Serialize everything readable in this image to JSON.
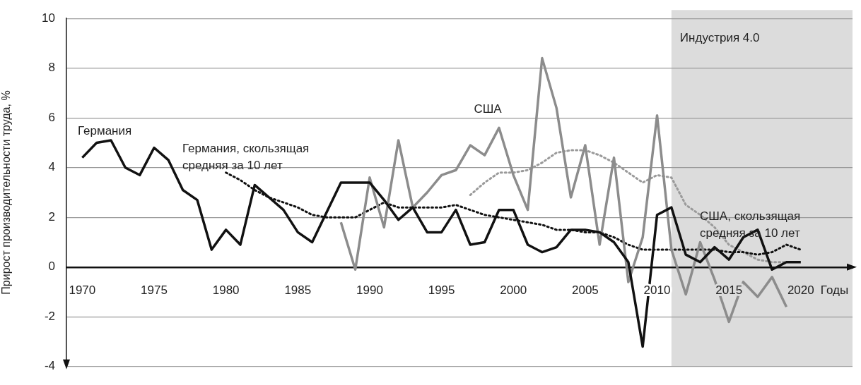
{
  "chart_data": {
    "type": "line",
    "ylabel": "Прирост производительности труда, %",
    "xlabel": "Годы",
    "xlim": [
      1968.9,
      2023.6
    ],
    "xticks": [
      1970,
      1975,
      1980,
      1985,
      1990,
      1995,
      2000,
      2005,
      2010,
      2015,
      2020
    ],
    "ylim": [
      -4,
      10
    ],
    "yticks": [
      -4,
      -2,
      0,
      2,
      4,
      6,
      8,
      10
    ],
    "grid": "y",
    "legend": false,
    "marker": "none",
    "bands": [
      {
        "axis": "x",
        "from": 2011,
        "to": 2023.6,
        "label": "Индустрия 4.0",
        "color": "#dcdcdc"
      }
    ],
    "series": [
      {
        "name": "Германия",
        "color": "#111111",
        "line_style": "solid",
        "x": [
          1970,
          1971,
          1972,
          1973,
          1974,
          1975,
          1976,
          1977,
          1978,
          1979,
          1980,
          1981,
          1982,
          1983,
          1984,
          1985,
          1986,
          1987,
          1988,
          1989,
          1990,
          1991,
          1992,
          1993,
          1994,
          1995,
          1996,
          1997,
          1998,
          1999,
          2000,
          2001,
          2002,
          2003,
          2004,
          2005,
          2006,
          2007,
          2008,
          2009,
          2010,
          2011,
          2012,
          2013,
          2014,
          2015,
          2016,
          2017,
          2018,
          2019,
          2020
        ],
        "values": [
          4.4,
          5.0,
          5.1,
          4.0,
          3.7,
          4.8,
          4.3,
          3.1,
          2.7,
          0.7,
          1.5,
          0.9,
          3.3,
          2.8,
          2.3,
          1.4,
          1.0,
          2.2,
          3.4,
          3.4,
          3.4,
          2.7,
          1.9,
          2.4,
          1.4,
          1.4,
          2.3,
          0.9,
          1.0,
          2.3,
          2.3,
          0.9,
          0.6,
          0.8,
          1.5,
          1.5,
          1.4,
          1.0,
          0.2,
          -3.2,
          2.1,
          2.4,
          0.5,
          0.2,
          0.8,
          0.3,
          1.2,
          1.5,
          -0.1,
          0.2,
          0.2
        ]
      },
      {
        "name": "США",
        "color": "#8c8c8c",
        "line_style": "solid",
        "x": [
          1988,
          1989,
          1990,
          1991,
          1992,
          1993,
          1994,
          1995,
          1996,
          1997,
          1998,
          1999,
          2000,
          2001,
          2002,
          2003,
          2004,
          2005,
          2006,
          2007,
          2008,
          2009,
          2010,
          2011,
          2012,
          2013,
          2014,
          2015,
          2016,
          2017,
          2018,
          2019
        ],
        "values": [
          1.8,
          -0.1,
          3.6,
          1.6,
          5.1,
          2.4,
          3.0,
          3.7,
          3.9,
          4.9,
          4.5,
          5.6,
          3.7,
          2.3,
          8.4,
          6.4,
          2.8,
          4.9,
          0.9,
          4.4,
          -0.6,
          1.2,
          6.1,
          0.7,
          -1.1,
          1.0,
          -0.5,
          -2.2,
          -0.6,
          -1.2,
          -0.4,
          -1.6
        ]
      },
      {
        "name": "Германия, скользящая средняя за 10 лет",
        "color": "#111111",
        "line_style": "dotted",
        "x": [
          1980,
          1981,
          1982,
          1983,
          1984,
          1985,
          1986,
          1987,
          1988,
          1989,
          1990,
          1991,
          1992,
          1993,
          1994,
          1995,
          1996,
          1997,
          1998,
          1999,
          2000,
          2001,
          2002,
          2003,
          2004,
          2005,
          2006,
          2007,
          2008,
          2009,
          2010,
          2011,
          2012,
          2013,
          2014,
          2015,
          2016,
          2017,
          2018,
          2019,
          2020
        ],
        "values": [
          3.8,
          3.5,
          3.1,
          2.8,
          2.6,
          2.4,
          2.1,
          2.0,
          2.0,
          2.0,
          2.3,
          2.6,
          2.4,
          2.4,
          2.4,
          2.4,
          2.5,
          2.3,
          2.1,
          2.0,
          1.9,
          1.8,
          1.7,
          1.5,
          1.5,
          1.4,
          1.4,
          1.2,
          0.9,
          0.7,
          0.7,
          0.7,
          0.7,
          0.7,
          0.7,
          0.6,
          0.6,
          0.5,
          0.6,
          0.9,
          0.7
        ]
      },
      {
        "name": "США, скользящая средняя за 10 лет",
        "color": "#9a9a9a",
        "line_style": "dotted",
        "x": [
          1997,
          1998,
          1999,
          2000,
          2001,
          2002,
          2003,
          2004,
          2005,
          2006,
          2007,
          2008,
          2009,
          2010,
          2011,
          2012,
          2013,
          2014,
          2015,
          2016,
          2017,
          2018,
          2019
        ],
        "values": [
          2.9,
          3.4,
          3.8,
          3.8,
          3.9,
          4.2,
          4.6,
          4.7,
          4.7,
          4.5,
          4.2,
          3.8,
          3.4,
          3.7,
          3.6,
          2.5,
          2.1,
          1.6,
          0.9,
          0.6,
          0.3,
          0.2,
          0.2
        ]
      }
    ]
  }
}
